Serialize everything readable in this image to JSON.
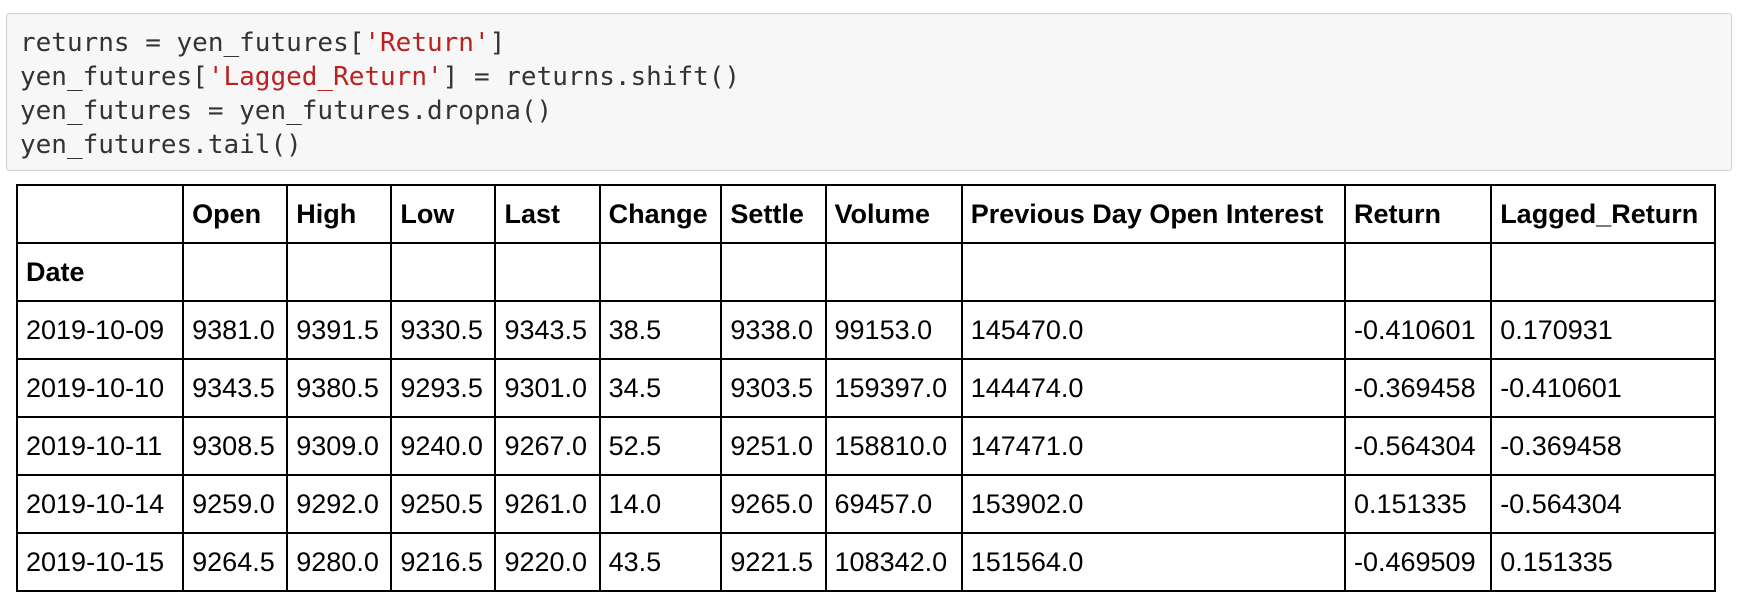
{
  "code_cell": {
    "lines": [
      [
        {
          "t": "returns = yen_futures[",
          "k": "plain"
        },
        {
          "t": "'Return'",
          "k": "str"
        },
        {
          "t": "]",
          "k": "plain"
        }
      ],
      [
        {
          "t": "yen_futures[",
          "k": "plain"
        },
        {
          "t": "'Lagged_Return'",
          "k": "str"
        },
        {
          "t": "] = returns.shift()",
          "k": "plain"
        }
      ],
      [
        {
          "t": "yen_futures = yen_futures.dropna()",
          "k": "plain"
        }
      ],
      [
        {
          "t": "yen_futures.tail()",
          "k": "plain"
        }
      ]
    ]
  },
  "table": {
    "columns": [
      "",
      "Open",
      "High",
      "Low",
      "Last",
      "Change",
      "Settle",
      "Volume",
      "Previous Day Open Interest",
      "Return",
      "Lagged_Return"
    ],
    "index_name": "Date",
    "rows": [
      [
        "2019-10-09",
        "9381.0",
        "9391.5",
        "9330.5",
        "9343.5",
        "38.5",
        "9338.0",
        "99153.0",
        "145470.0",
        "-0.410601",
        "0.170931"
      ],
      [
        "2019-10-10",
        "9343.5",
        "9380.5",
        "9293.5",
        "9301.0",
        "34.5",
        "9303.5",
        "159397.0",
        "144474.0",
        "-0.369458",
        "-0.410601"
      ],
      [
        "2019-10-11",
        "9308.5",
        "9309.0",
        "9240.0",
        "9267.0",
        "52.5",
        "9251.0",
        "158810.0",
        "147471.0",
        "-0.564304",
        "-0.369458"
      ],
      [
        "2019-10-14",
        "9259.0",
        "9292.0",
        "9250.5",
        "9261.0",
        "14.0",
        "9265.0",
        "69457.0",
        "153902.0",
        "0.151335",
        "-0.564304"
      ],
      [
        "2019-10-15",
        "9264.5",
        "9280.0",
        "9216.5",
        "9220.0",
        "43.5",
        "9221.5",
        "108342.0",
        "151564.0",
        "-0.469509",
        "0.151335"
      ]
    ]
  }
}
